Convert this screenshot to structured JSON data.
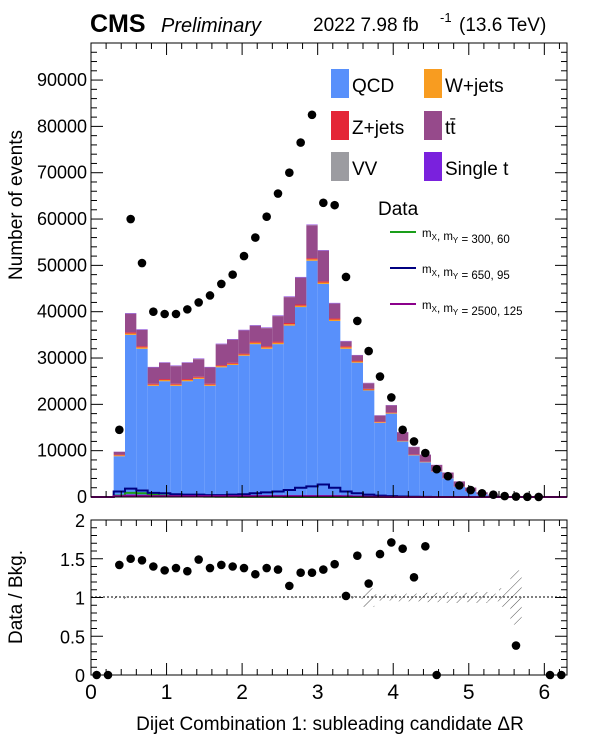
{
  "header": {
    "experiment": "CMS",
    "status": "Preliminary",
    "lumi_text": "2022 7.98 fb",
    "lumi_exp": "-1",
    "energy": "(13.6 TeV)"
  },
  "legend": {
    "entries": [
      {
        "key": "qcd",
        "label": "QCD",
        "color": "#5890fb"
      },
      {
        "key": "wjets",
        "label": "W+jets",
        "color": "#f89c20"
      },
      {
        "key": "zjets",
        "label": "Z+jets",
        "color": "#e42536"
      },
      {
        "key": "ttbar",
        "label": "tt̄",
        "color": "#964a8b"
      },
      {
        "key": "vv",
        "label": "VV",
        "color": "#9c9ca1"
      },
      {
        "key": "singlet",
        "label": "Single t",
        "color": "#7a21dd"
      },
      {
        "key": "data",
        "label": "Data",
        "color": "#000000"
      }
    ],
    "signals": [
      {
        "label_pre": "m",
        "sub1": "X",
        "mid": ", m",
        "sub2": "Y",
        "post": " = 300, 60",
        "color": "#1a9e1a"
      },
      {
        "label_pre": "m",
        "sub1": "X",
        "mid": ", m",
        "sub2": "Y",
        "post": " = 650, 95",
        "color": "#000080"
      },
      {
        "label_pre": "m",
        "sub1": "X",
        "mid": ", m",
        "sub2": "Y",
        "post": " = 2500, 125",
        "color": "#8b008b"
      }
    ]
  },
  "chart_data": {
    "type": "bar",
    "stacked": true,
    "bin_edges": [
      0,
      0.15,
      0.3,
      0.45,
      0.6,
      0.75,
      0.9,
      1.05,
      1.2,
      1.35,
      1.5,
      1.65,
      1.8,
      1.95,
      2.1,
      2.25,
      2.4,
      2.55,
      2.7,
      2.85,
      3.0,
      3.15,
      3.3,
      3.45,
      3.6,
      3.75,
      3.9,
      4.05,
      4.2,
      4.35,
      4.5,
      4.65,
      4.8,
      4.95,
      5.1,
      5.25,
      5.4,
      5.55,
      5.7,
      5.85,
      6.0,
      6.15,
      6.3
    ],
    "xlabel": "Dijet Combination 1: subleading candidate ΔR",
    "xlim": [
      0,
      6.3
    ],
    "xticks": [
      0,
      1,
      2,
      3,
      4,
      5,
      6
    ],
    "ylabel": "Number of events",
    "ylim": [
      0,
      98000
    ],
    "yticks": [
      0,
      10000,
      20000,
      30000,
      40000,
      50000,
      60000,
      70000,
      80000,
      90000
    ],
    "series": [
      {
        "name": "QCD",
        "values": [
          0,
          0,
          8800,
          35000,
          32000,
          24000,
          25000,
          24000,
          25000,
          25500,
          24000,
          28000,
          28500,
          30500,
          33000,
          32000,
          33000,
          37000,
          41000,
          51000,
          46000,
          38000,
          32000,
          29000,
          23000,
          16000,
          18000,
          12000,
          9000,
          7500,
          5500,
          4000,
          2200,
          1200,
          600,
          300,
          120,
          50,
          20,
          0,
          0,
          0
        ]
      },
      {
        "name": "W+jets",
        "values": [
          0,
          0,
          200,
          300,
          300,
          250,
          250,
          250,
          250,
          250,
          250,
          250,
          250,
          250,
          300,
          300,
          300,
          300,
          300,
          300,
          300,
          300,
          300,
          250,
          200,
          150,
          150,
          100,
          100,
          80,
          60,
          40,
          30,
          20,
          10,
          5,
          0,
          0,
          0,
          0,
          0,
          0
        ]
      },
      {
        "name": "Z+jets",
        "values": [
          0,
          0,
          150,
          250,
          250,
          200,
          200,
          200,
          200,
          200,
          200,
          200,
          200,
          200,
          250,
          250,
          250,
          250,
          250,
          250,
          250,
          250,
          250,
          200,
          150,
          120,
          120,
          80,
          80,
          60,
          50,
          30,
          20,
          15,
          8,
          4,
          0,
          0,
          0,
          0,
          0,
          0
        ]
      },
      {
        "name": "tt̄",
        "values": [
          0,
          0,
          600,
          4000,
          3500,
          3500,
          3500,
          3800,
          3500,
          3800,
          3500,
          4500,
          5000,
          5000,
          3400,
          3900,
          5500,
          5600,
          5800,
          7100,
          6600,
          3200,
          1000,
          1100,
          1200,
          1300,
          1500,
          1800,
          1600,
          1500,
          1300,
          1200,
          1100,
          800,
          400,
          200,
          100,
          80,
          50,
          0,
          0,
          0
        ]
      },
      {
        "name": "VV",
        "values": [
          0,
          0,
          20,
          50,
          50,
          40,
          40,
          40,
          40,
          40,
          40,
          40,
          40,
          40,
          50,
          50,
          50,
          50,
          50,
          50,
          50,
          50,
          50,
          40,
          30,
          25,
          25,
          20,
          15,
          12,
          10,
          8,
          5,
          3,
          2,
          1,
          0,
          0,
          0,
          0,
          0,
          0
        ]
      },
      {
        "name": "Single t",
        "values": [
          0,
          0,
          30,
          100,
          100,
          90,
          90,
          90,
          90,
          90,
          90,
          100,
          100,
          100,
          100,
          100,
          100,
          100,
          100,
          100,
          100,
          100,
          90,
          70,
          60,
          50,
          50,
          40,
          35,
          30,
          25,
          20,
          15,
          10,
          5,
          3,
          0,
          0,
          0,
          0,
          0,
          0
        ]
      }
    ],
    "signals": [
      {
        "name": "mX, mY = 300, 60",
        "values": [
          0,
          0,
          300,
          900,
          800,
          500,
          300,
          200,
          150,
          100,
          80,
          60,
          50,
          40,
          30,
          20,
          15,
          10,
          8,
          5,
          3,
          2,
          0,
          0,
          0,
          0,
          0,
          0,
          0,
          0,
          0,
          0,
          0,
          0,
          0,
          0,
          0,
          0,
          0,
          0,
          0,
          0
        ]
      },
      {
        "name": "mX, mY = 650, 95",
        "values": [
          0,
          0,
          1200,
          1800,
          1400,
          900,
          800,
          600,
          500,
          500,
          400,
          400,
          500,
          600,
          800,
          1000,
          1200,
          1500,
          2000,
          2300,
          2700,
          2000,
          1200,
          800,
          500,
          300,
          200,
          100,
          50,
          20,
          10,
          0,
          0,
          0,
          0,
          0,
          0,
          0,
          0,
          0,
          0,
          0
        ]
      },
      {
        "name": "mX, mY = 2500, 125",
        "values": [
          0,
          0,
          200,
          300,
          250,
          200,
          200,
          200,
          200,
          200,
          200,
          200,
          200,
          200,
          200,
          200,
          200,
          200,
          200,
          200,
          200,
          200,
          150,
          100,
          50,
          20,
          10,
          0,
          0,
          0,
          0,
          0,
          0,
          0,
          0,
          0,
          0,
          0,
          0,
          0,
          0,
          0
        ]
      }
    ],
    "data": {
      "x": [
        0.375,
        0.525,
        0.675,
        0.825,
        0.975,
        1.125,
        1.275,
        1.425,
        1.575,
        1.725,
        1.875,
        2.025,
        2.175,
        2.325,
        2.475,
        2.625,
        2.775,
        2.925,
        3.075,
        3.225,
        3.375,
        3.525,
        3.675,
        3.825,
        3.975,
        4.125,
        4.275,
        4.425,
        4.575,
        4.725,
        4.875,
        5.025,
        5.175,
        5.325,
        5.475,
        5.625,
        5.775,
        5.925
      ],
      "y": [
        14500,
        60000,
        50500,
        40000,
        39500,
        39500,
        40500,
        42000,
        43500,
        46000,
        48000,
        52000,
        56000,
        60500,
        65500,
        70000,
        76500,
        82500,
        63500,
        63000,
        47500,
        38000,
        31500,
        26000,
        21500,
        14500,
        12000,
        9500,
        6000,
        4500,
        2500,
        1500,
        800,
        500,
        200,
        100,
        30,
        10
      ]
    },
    "ratio": {
      "ylabel": "Data / Bkg.",
      "ylim": [
        0,
        2
      ],
      "yticks": [
        0,
        0.5,
        1,
        1.5,
        2
      ],
      "x": [
        0.075,
        0.225,
        0.375,
        0.525,
        0.675,
        0.825,
        0.975,
        1.125,
        1.275,
        1.425,
        1.575,
        1.725,
        1.875,
        2.025,
        2.175,
        2.325,
        2.475,
        2.625,
        2.775,
        2.925,
        3.075,
        3.225,
        3.375,
        3.525,
        3.675,
        3.825,
        3.975,
        4.125,
        4.275,
        4.425,
        4.575,
        5.625,
        6.075,
        6.225
      ],
      "y": [
        0,
        0,
        1.42,
        1.5,
        1.48,
        1.4,
        1.35,
        1.38,
        1.34,
        1.49,
        1.38,
        1.42,
        1.4,
        1.38,
        1.3,
        1.38,
        1.36,
        1.15,
        1.32,
        1.32,
        1.36,
        1.43,
        1.02,
        1.54,
        1.18,
        1.56,
        1.71,
        1.63,
        1.26,
        1.66,
        0,
        0.38,
        0,
        0
      ],
      "unc_band": {
        "x_edges": [
          0.3,
          0.45,
          0.6,
          0.75,
          0.9,
          1.05,
          1.2,
          1.35,
          1.5,
          1.65,
          1.8,
          1.95,
          2.1,
          2.25,
          2.4,
          2.55,
          2.7,
          2.85,
          3.0,
          3.15,
          3.3,
          3.45,
          3.6,
          3.75,
          3.9,
          4.05,
          4.2,
          4.35,
          4.5,
          4.65,
          4.8,
          4.95,
          5.1,
          5.25,
          5.4,
          5.55,
          5.7
        ],
        "half_width": [
          0.02,
          0.01,
          0.01,
          0.01,
          0.01,
          0.01,
          0.01,
          0.01,
          0.01,
          0.01,
          0.01,
          0.01,
          0.01,
          0.01,
          0.01,
          0.01,
          0.01,
          0.01,
          0.01,
          0.01,
          0.01,
          0.02,
          0.12,
          0.04,
          0.04,
          0.05,
          0.05,
          0.06,
          0.06,
          0.07,
          0.07,
          0.06,
          0.07,
          0.05,
          0.12,
          0.35,
          0.3
        ]
      }
    }
  }
}
